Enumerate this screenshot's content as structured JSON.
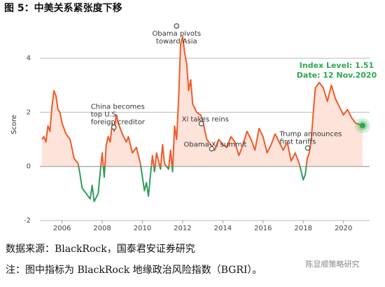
{
  "chart_data": {
    "type": "line",
    "title": "图 5：中美关系紧张度下移",
    "y_label": "Score",
    "x": [
      2005.0,
      2005.1,
      2005.2,
      2005.3,
      2005.4,
      2005.5,
      2005.6,
      2005.7,
      2005.8,
      2005.9,
      2006.0,
      2006.2,
      2006.4,
      2006.6,
      2006.8,
      2006.9,
      2007.0,
      2007.2,
      2007.4,
      2007.5,
      2007.6,
      2007.8,
      2007.9,
      2008.0,
      2008.1,
      2008.2,
      2008.3,
      2008.4,
      2008.5,
      2008.6,
      2008.7,
      2008.8,
      2009.0,
      2009.2,
      2009.3,
      2009.5,
      2009.7,
      2009.9,
      2010.0,
      2010.1,
      2010.2,
      2010.3,
      2010.4,
      2010.5,
      2010.6,
      2010.7,
      2010.9,
      2011.0,
      2011.1,
      2011.3,
      2011.4,
      2011.5,
      2011.6,
      2011.7,
      2011.8,
      2011.9,
      2012.0,
      2012.1,
      2012.2,
      2012.3,
      2012.4,
      2012.5,
      2012.7,
      2012.9,
      2013.0,
      2013.2,
      2013.4,
      2013.6,
      2013.8,
      2014.0,
      2014.2,
      2014.4,
      2014.6,
      2014.8,
      2015.0,
      2015.2,
      2015.4,
      2015.6,
      2015.8,
      2016.0,
      2016.2,
      2016.4,
      2016.6,
      2016.8,
      2017.0,
      2017.2,
      2017.4,
      2017.6,
      2017.8,
      2017.9,
      2018.0,
      2018.1,
      2018.2,
      2018.3,
      2018.4,
      2018.5,
      2018.6,
      2018.8,
      2019.0,
      2019.2,
      2019.4,
      2019.6,
      2019.8,
      2020.0,
      2020.2,
      2020.4,
      2020.6,
      2020.95
    ],
    "values": [
      1.0,
      1.1,
      0.9,
      1.5,
      1.3,
      2.2,
      2.8,
      2.6,
      2.1,
      2.0,
      1.6,
      1.2,
      1.0,
      0.3,
      0.1,
      -0.3,
      -0.8,
      -1.0,
      -1.2,
      -0.7,
      -1.3,
      -1.0,
      -0.2,
      0.5,
      -0.4,
      0.8,
      1.1,
      0.9,
      1.6,
      1.3,
      1.9,
      1.6,
      1.2,
      0.9,
      1.1,
      0.5,
      0.7,
      0.1,
      -0.4,
      -0.9,
      -0.6,
      -1.1,
      -0.3,
      0.4,
      -0.2,
      0.5,
      -0.1,
      0.8,
      0.1,
      -0.1,
      0.6,
      -0.2,
      1.5,
      1.0,
      2.5,
      4.5,
      4.8,
      4.2,
      3.8,
      2.8,
      3.2,
      2.3,
      2.0,
      1.9,
      1.7,
      1.0,
      0.8,
      0.6,
      1.0,
      0.8,
      0.7,
      1.1,
      0.9,
      0.4,
      0.8,
      1.3,
      1.0,
      0.6,
      1.4,
      1.1,
      0.5,
      0.8,
      1.2,
      0.9,
      0.6,
      0.9,
      0.2,
      0.5,
      0.1,
      -0.2,
      -0.5,
      -0.3,
      0.3,
      0.5,
      1.0,
      2.0,
      2.9,
      3.1,
      2.9,
      2.4,
      3.0,
      2.5,
      2.2,
      1.9,
      2.1,
      1.8,
      1.6,
      1.51
    ],
    "color_positive": "#f05a28",
    "color_negative": "#2e9e5b",
    "area_color": "#fde3da",
    "xlim": [
      2004.9,
      2021.3
    ],
    "xticks": [
      2006,
      2008,
      2010,
      2012,
      2014,
      2016,
      2018,
      2020
    ],
    "ylim": [
      -2,
      5.4
    ],
    "yticks": [
      -2,
      0,
      2,
      4
    ],
    "grid": true,
    "annotations": [
      {
        "lines": [
          "Obama pivots",
          "toward Asia"
        ],
        "x": 2011.7,
        "y": 5.19
      },
      {
        "lines": [
          "China becomes",
          "top U.S.",
          "foreign creditor"
        ],
        "x": 2008.58,
        "y": 1.45
      },
      {
        "lines": [
          "Xi takes reins"
        ],
        "x": 2012.93,
        "y": 1.58
      },
      {
        "lines": [
          "Obama-Xi summit"
        ],
        "x": 2013.45,
        "y": 0.65
      },
      {
        "lines": [
          "Trump announces",
          "first tariffs"
        ],
        "x": 2018.22,
        "y": 0.68
      }
    ],
    "end_label": [
      "Index Level: 1.51",
      "Date: 12 Nov.2020"
    ],
    "end_color": "#2fa84f"
  },
  "footer": {
    "source": "数据来源：BlackRock，国泰君安证券研究",
    "note": "注：图中指标为 BlackRock 地缘政治风险指数（BGRI）。",
    "watermark": "陈显顺策略研究"
  }
}
